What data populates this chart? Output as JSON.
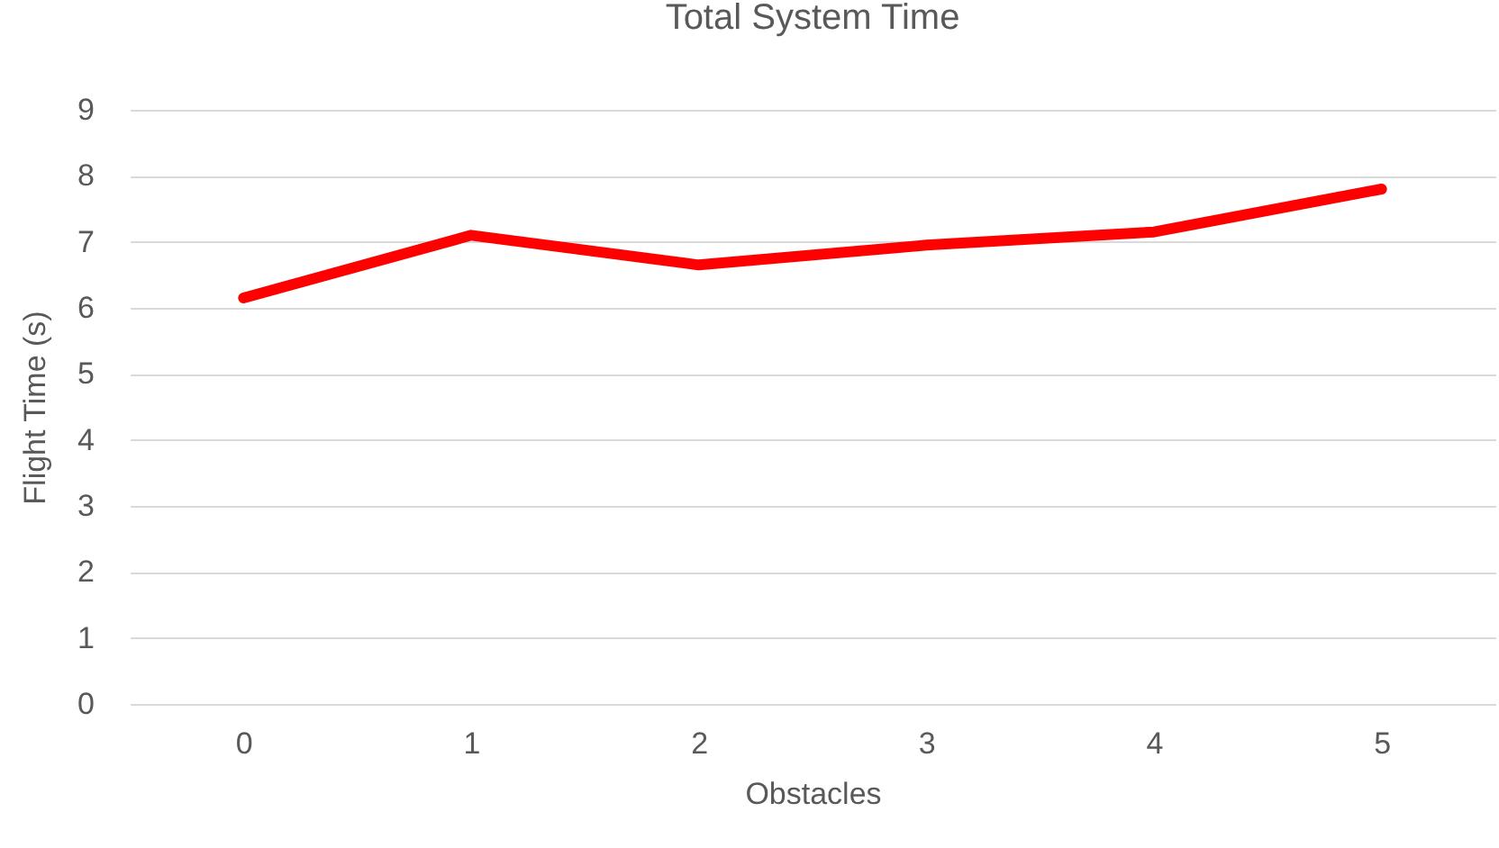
{
  "chart_data": {
    "type": "line",
    "title": "Total System Time",
    "xlabel": "Obstacles",
    "ylabel": "Flight Time (s)",
    "categories": [
      "0",
      "1",
      "2",
      "3",
      "4",
      "5"
    ],
    "series": [
      {
        "color": "#ff0000",
        "values": [
          6.15,
          7.1,
          6.65,
          6.95,
          7.15,
          7.8
        ]
      }
    ],
    "ylim": [
      0,
      9
    ],
    "yticks": [
      0,
      1,
      2,
      3,
      4,
      5,
      6,
      7,
      8,
      9
    ],
    "grid": "y",
    "legend": false,
    "marker": "none",
    "line_style": "solid"
  }
}
